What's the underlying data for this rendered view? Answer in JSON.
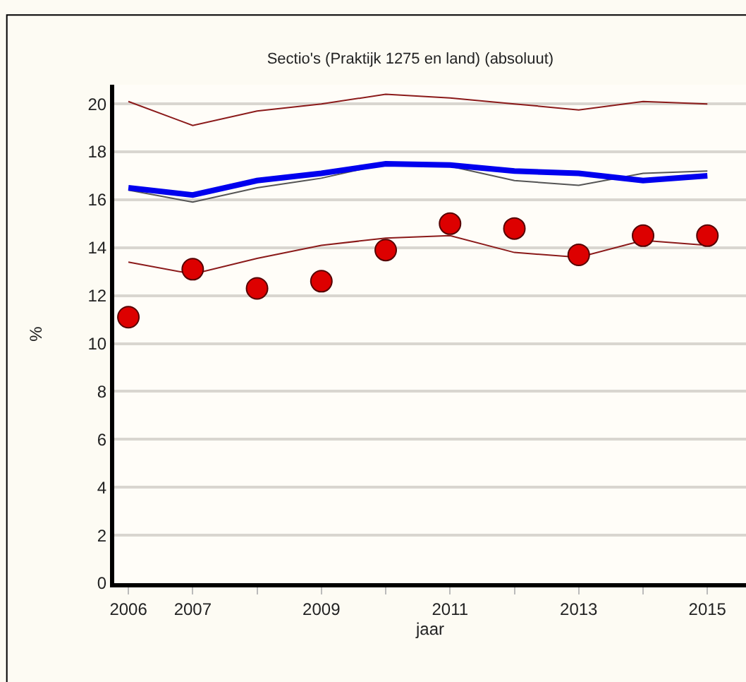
{
  "chart_data": {
    "type": "line",
    "title": "Sectio's (Praktijk 1275 en land) (absoluut)",
    "xlabel": "jaar",
    "ylabel": "%",
    "x": [
      2006,
      2007,
      2008,
      2009,
      2010,
      2011,
      2012,
      2013,
      2014,
      2015
    ],
    "series": [
      {
        "color": "#8b1a1a",
        "values": [
          20.1,
          19.1,
          19.7,
          20.0,
          20.4,
          20.25,
          20.0,
          19.75,
          20.1,
          20.0
        ]
      },
      {
        "color": "#8b1a1a",
        "values": [
          13.4,
          12.9,
          13.55,
          14.1,
          14.4,
          14.5,
          13.8,
          13.6,
          14.3,
          14.1
        ]
      },
      {
        "color": "#555555",
        "values": [
          16.4,
          15.9,
          16.5,
          16.9,
          17.5,
          17.4,
          16.8,
          16.6,
          17.1,
          17.2
        ]
      },
      {
        "color": "#0000ee",
        "values": [
          16.5,
          16.2,
          16.8,
          17.1,
          17.5,
          17.45,
          17.2,
          17.1,
          16.8,
          17.0
        ]
      },
      {
        "type": "scatter",
        "color": "#dd0000",
        "marker": "circle",
        "values": [
          11.1,
          13.1,
          12.3,
          12.6,
          13.9,
          15.0,
          14.8,
          13.7,
          14.5,
          14.5
        ]
      }
    ],
    "xlim": [
      2005.78,
      2015.6
    ],
    "ylim": [
      0,
      20.8
    ],
    "xticks": [
      2006,
      2007,
      {
        "value": 2008,
        "label": null
      },
      2009,
      {
        "value": 2010,
        "label": null
      },
      2011,
      {
        "value": 2012,
        "label": null
      },
      2013,
      {
        "value": 2014,
        "label": null
      },
      2015
    ],
    "yticks": [
      0,
      2,
      4,
      6,
      8,
      10,
      12,
      14,
      16,
      18,
      20
    ],
    "grid": "y",
    "legend": false
  }
}
